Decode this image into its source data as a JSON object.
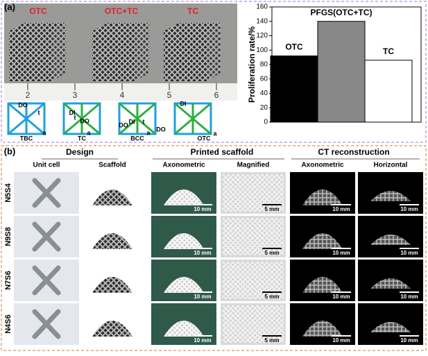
{
  "panel_a": {
    "label": "(a)",
    "photo_labels": [
      "OTC",
      "OTC+TC",
      "TC"
    ],
    "ruler_numbers": [
      "2",
      "3",
      "4",
      "5",
      "6"
    ],
    "unit_cells": [
      {
        "name": "TBC",
        "annotations": [
          "DO",
          "t",
          "a"
        ]
      },
      {
        "name": "TC",
        "annotations": [
          "DI",
          "t",
          "DO",
          "a"
        ]
      },
      {
        "name": "BCC",
        "annotations": [
          "DI",
          "DO",
          "t",
          "a"
        ]
      },
      {
        "name": "OTC",
        "annotations": [
          "DI",
          "DO",
          "a"
        ]
      }
    ]
  },
  "chart_data": {
    "type": "bar",
    "y_label": "Proliferation rate/%",
    "categories": [
      "OTC",
      "PFGS(OTC+TC)",
      "TC"
    ],
    "values": [
      92,
      140,
      86
    ],
    "colors": [
      "#000000",
      "#888888",
      "#ffffff"
    ],
    "ylim": [
      0,
      160
    ],
    "yticks": [
      0,
      20,
      40,
      60,
      80,
      100,
      120,
      140,
      160
    ]
  },
  "panel_b": {
    "label": "(b)",
    "groups": [
      "Design",
      "Printed scaffold",
      "CT reconstruction"
    ],
    "columns": [
      "Unit cell",
      "Scaffold",
      "Axonometric",
      "Magnified",
      "Axonometric",
      "Horizontal"
    ],
    "rows": [
      {
        "name": "N5S4",
        "scale_bars": [
          "10 mm",
          "5 mm",
          "10 mm",
          "10 mm"
        ]
      },
      {
        "name": "N9S8",
        "scale_bars": [
          "10 mm",
          "5 mm",
          "10 mm",
          "10 mm"
        ]
      },
      {
        "name": "N7S6",
        "scale_bars": [
          "10 mm",
          "5 mm",
          "10 mm",
          "10 mm"
        ]
      },
      {
        "name": "N4S6",
        "scale_bars": [
          "10 mm",
          "5 mm",
          "10 mm",
          "10 mm"
        ]
      }
    ]
  }
}
